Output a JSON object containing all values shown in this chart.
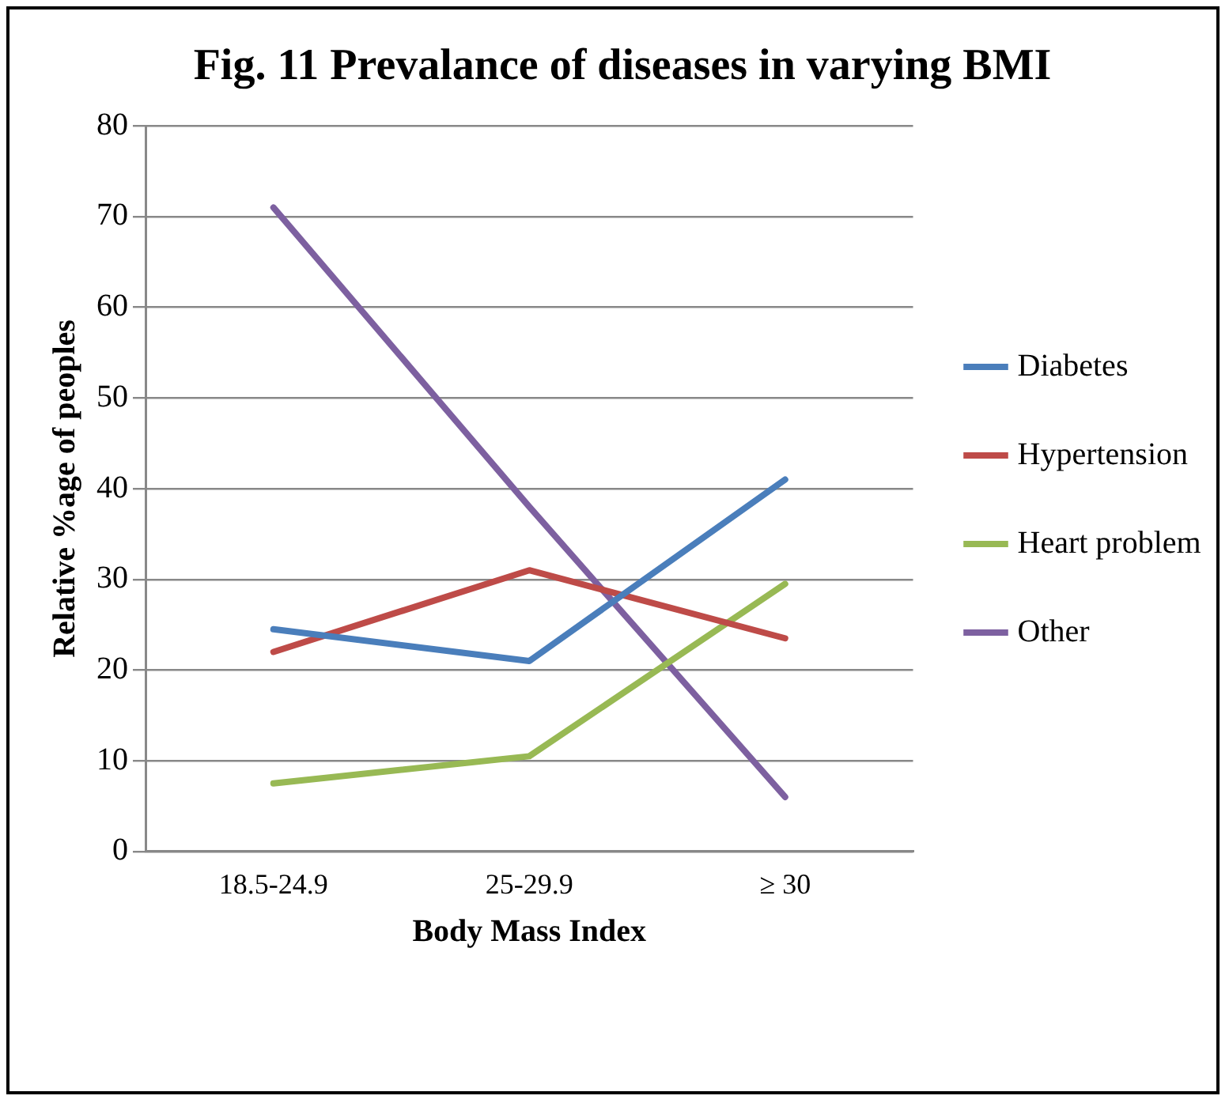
{
  "chart_data": {
    "type": "line",
    "title": "Fig. 11 Prevalance of diseases in varying BMI",
    "xlabel": "Body Mass Index",
    "ylabel": "Relative %age of peoples",
    "categories": [
      "18.5-24.9",
      "25-29.9",
      "≥ 30"
    ],
    "series": [
      {
        "name": "Diabetes",
        "color": "#4a7ebb",
        "values": [
          24.5,
          21,
          41
        ]
      },
      {
        "name": "Hypertension",
        "color": "#be4b48",
        "values": [
          22,
          31,
          23.5
        ]
      },
      {
        "name": "Heart problem",
        "color": "#98b954",
        "values": [
          7.5,
          10.5,
          29.5
        ]
      },
      {
        "name": "Other",
        "color": "#7d60a0",
        "values": [
          71,
          38,
          6
        ]
      }
    ],
    "ylim": [
      0,
      80
    ],
    "yticks": [
      0,
      10,
      20,
      30,
      40,
      50,
      60,
      70,
      80
    ],
    "grid": "y",
    "legend": "right",
    "marker": "none",
    "line_style": "solid"
  }
}
